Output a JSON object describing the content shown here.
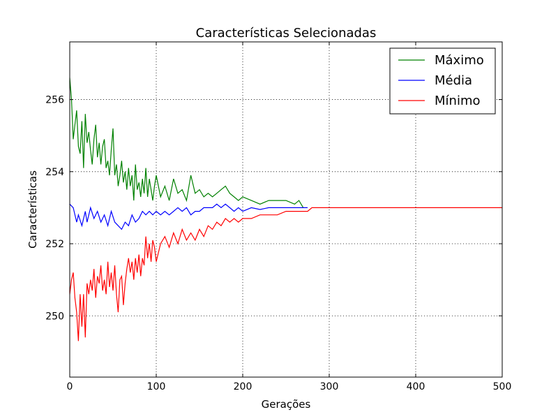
{
  "chart_data": {
    "type": "line",
    "title": "Características Selecionadas",
    "xlabel": "Gerações",
    "ylabel": "Características",
    "xlim": [
      0,
      500
    ],
    "ylim": [
      248.3,
      257.6
    ],
    "xticks": [
      0,
      100,
      200,
      300,
      400,
      500
    ],
    "xtick_labels": [
      "0",
      "100",
      "200",
      "300",
      "400",
      "500"
    ],
    "yticks": [
      250,
      252,
      254,
      256
    ],
    "ytick_labels": [
      "250",
      "252",
      "254",
      "256"
    ],
    "grid": true,
    "legend_position": "top-right",
    "series": [
      {
        "name": "Máximo",
        "color": "#008000",
        "x": [
          0,
          2,
          4,
          6,
          8,
          10,
          12,
          14,
          16,
          18,
          20,
          22,
          24,
          26,
          28,
          30,
          32,
          34,
          36,
          38,
          40,
          42,
          44,
          46,
          48,
          50,
          52,
          54,
          56,
          58,
          60,
          62,
          64,
          66,
          68,
          70,
          72,
          74,
          76,
          78,
          80,
          82,
          84,
          86,
          88,
          90,
          92,
          94,
          96,
          98,
          100,
          105,
          110,
          115,
          120,
          125,
          130,
          135,
          140,
          145,
          150,
          155,
          160,
          165,
          170,
          175,
          180,
          185,
          190,
          195,
          200,
          210,
          220,
          230,
          240,
          250,
          260,
          265,
          270
        ],
        "y": [
          256.6,
          256.0,
          254.9,
          255.3,
          255.7,
          254.7,
          254.5,
          255.4,
          254.1,
          255.6,
          254.8,
          255.1,
          254.6,
          254.2,
          254.9,
          255.3,
          254.4,
          254.8,
          254.2,
          254.7,
          254.9,
          254.1,
          254.3,
          253.9,
          254.6,
          255.2,
          253.9,
          254.2,
          253.6,
          253.9,
          254.3,
          253.7,
          254.0,
          253.5,
          254.1,
          253.6,
          253.9,
          253.2,
          254.2,
          253.5,
          253.7,
          253.3,
          253.8,
          253.4,
          254.1,
          253.3,
          253.8,
          253.5,
          253.2,
          253.6,
          253.9,
          253.3,
          253.6,
          253.2,
          253.8,
          253.4,
          253.5,
          253.2,
          253.9,
          253.4,
          253.5,
          253.3,
          253.4,
          253.3,
          253.4,
          253.5,
          253.6,
          253.4,
          253.3,
          253.2,
          253.3,
          253.2,
          253.1,
          253.2,
          253.2,
          253.2,
          253.1,
          253.2,
          253.0
        ]
      },
      {
        "name": "Média",
        "color": "#0000ff",
        "x": [
          0,
          4,
          8,
          10,
          14,
          18,
          20,
          24,
          28,
          32,
          36,
          40,
          44,
          48,
          52,
          56,
          60,
          64,
          68,
          72,
          76,
          80,
          84,
          88,
          92,
          96,
          100,
          105,
          110,
          115,
          120,
          125,
          130,
          135,
          140,
          145,
          150,
          155,
          160,
          165,
          170,
          175,
          180,
          185,
          190,
          195,
          200,
          210,
          220,
          230,
          240,
          250,
          260,
          270,
          275
        ],
        "y": [
          253.1,
          253.0,
          252.6,
          252.8,
          252.5,
          252.9,
          252.6,
          253.0,
          252.7,
          252.9,
          252.6,
          252.8,
          252.5,
          252.9,
          252.6,
          252.5,
          252.4,
          252.6,
          252.5,
          252.8,
          252.6,
          252.7,
          252.9,
          252.8,
          252.9,
          252.8,
          252.9,
          252.8,
          252.9,
          252.8,
          252.9,
          253.0,
          252.9,
          253.0,
          252.8,
          252.9,
          252.9,
          253.0,
          253.0,
          253.0,
          253.1,
          253.0,
          253.1,
          253.0,
          252.9,
          253.0,
          252.9,
          253.0,
          252.95,
          253.0,
          253.0,
          253.0,
          253.0,
          253.0,
          253.0
        ]
      },
      {
        "name": "Mínimo",
        "color": "#ff0000",
        "x": [
          0,
          2,
          4,
          6,
          8,
          10,
          12,
          14,
          16,
          18,
          20,
          22,
          24,
          26,
          28,
          30,
          32,
          34,
          36,
          38,
          40,
          42,
          44,
          46,
          48,
          50,
          52,
          54,
          56,
          58,
          60,
          62,
          64,
          66,
          68,
          70,
          72,
          74,
          76,
          78,
          80,
          82,
          84,
          86,
          88,
          90,
          92,
          94,
          96,
          98,
          100,
          105,
          110,
          115,
          120,
          125,
          130,
          135,
          140,
          145,
          150,
          155,
          160,
          165,
          170,
          175,
          180,
          185,
          190,
          195,
          200,
          210,
          220,
          230,
          240,
          250,
          260,
          270,
          275,
          280,
          290,
          300,
          350,
          400,
          450,
          500
        ],
        "y": [
          250.6,
          251.0,
          251.2,
          250.5,
          250.1,
          249.3,
          250.6,
          249.7,
          250.6,
          249.4,
          250.9,
          250.6,
          251.0,
          250.7,
          251.3,
          250.5,
          251.1,
          250.9,
          251.4,
          250.7,
          251.0,
          250.6,
          251.5,
          250.8,
          251.2,
          250.7,
          251.4,
          250.6,
          250.1,
          251.0,
          251.1,
          250.3,
          250.9,
          251.3,
          251.6,
          251.2,
          251.5,
          251.0,
          251.6,
          251.2,
          251.7,
          251.1,
          251.6,
          251.4,
          252.2,
          251.6,
          252.0,
          251.5,
          252.1,
          251.9,
          251.5,
          252.0,
          252.2,
          251.9,
          252.3,
          252.0,
          252.4,
          252.1,
          252.3,
          252.1,
          252.4,
          252.2,
          252.5,
          252.4,
          252.6,
          252.5,
          252.7,
          252.6,
          252.7,
          252.6,
          252.7,
          252.7,
          252.8,
          252.8,
          252.8,
          252.9,
          252.9,
          252.9,
          252.9,
          253.0,
          253.0,
          253.0,
          253.0,
          253.0,
          253.0,
          253.0
        ]
      }
    ]
  }
}
